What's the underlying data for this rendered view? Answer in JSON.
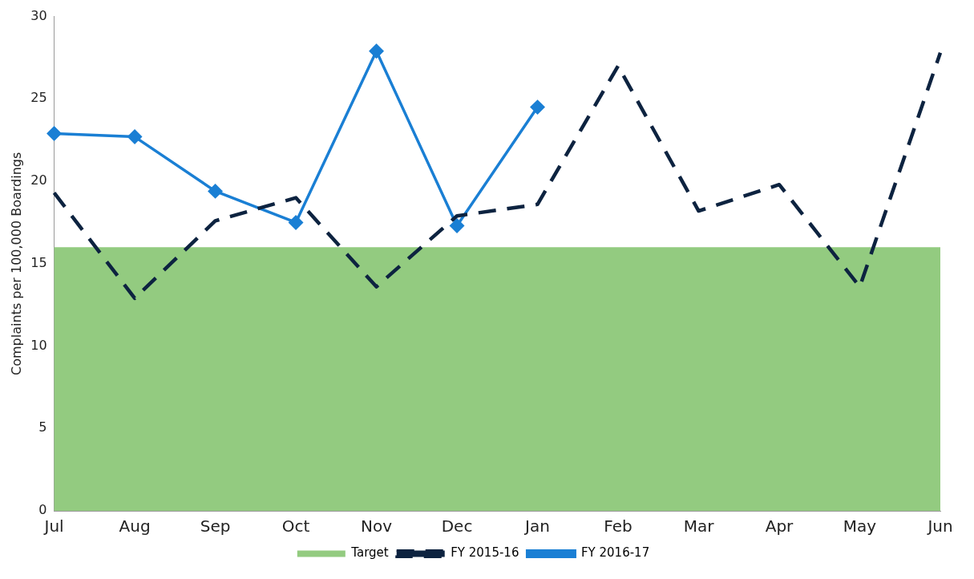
{
  "chart_data": {
    "type": "line",
    "ylabel": "Complaints per 100,000 Boardings",
    "categories": [
      "Jul",
      "Aug",
      "Sep",
      "Oct",
      "Nov",
      "Dec",
      "Jan",
      "Feb",
      "Mar",
      "Apr",
      "May",
      "Jun"
    ],
    "series": [
      {
        "name": "FY 2015-16",
        "color": "#0d2340",
        "line_style": "dashed",
        "marker": "none",
        "values": [
          19.3,
          12.9,
          17.6,
          19.0,
          13.6,
          17.9,
          18.6,
          27.0,
          18.2,
          19.8,
          13.6,
          27.8
        ]
      },
      {
        "name": "FY 2016-17",
        "color": "#1a7fd4",
        "line_style": "solid",
        "marker": "diamond",
        "values": [
          22.9,
          22.7,
          19.4,
          17.5,
          27.9,
          17.3,
          24.5,
          null,
          null,
          null,
          null,
          null
        ]
      }
    ],
    "bands": [
      {
        "axis": "y",
        "from": 0,
        "to": 16,
        "label": "Target",
        "color": "#93cb80"
      }
    ],
    "ylim": [
      0,
      30
    ],
    "yticks": [
      0,
      5,
      10,
      15,
      20,
      25,
      30
    ],
    "grid": false,
    "legend": "bottom"
  }
}
